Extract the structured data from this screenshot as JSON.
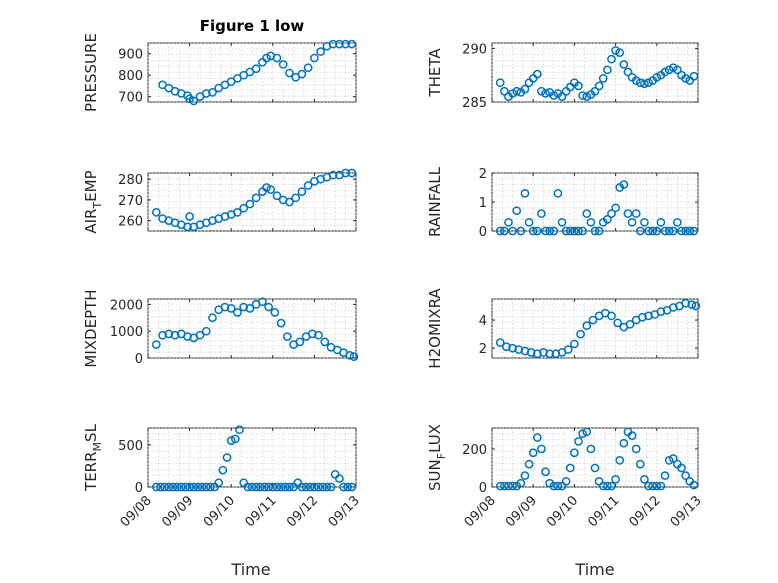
{
  "figure": {
    "title": "Figure 1 low",
    "xlabel": "Time",
    "marker_color": "#0072BD"
  },
  "chart_data": [
    {
      "type": "scatter",
      "name": "PRESSURE",
      "ylabel": "PRESSURE",
      "ylabel_sub": "",
      "ylabel_post": "",
      "xlim": [
        0,
        5
      ],
      "ylim": [
        675,
        950
      ],
      "yticks": [
        700,
        800,
        900
      ],
      "xticks": [
        0,
        1,
        2,
        3,
        4,
        5
      ],
      "xticklabels": [],
      "x": [
        0.35,
        0.5,
        0.65,
        0.8,
        0.95,
        1.0,
        1.1,
        1.25,
        1.4,
        1.55,
        1.7,
        1.85,
        2.0,
        2.15,
        2.3,
        2.45,
        2.6,
        2.75,
        2.85,
        2.95,
        3.1,
        3.25,
        3.4,
        3.55,
        3.7,
        3.85,
        4.0,
        4.15,
        4.3,
        4.45,
        4.6,
        4.75,
        4.9
      ],
      "y": [
        755,
        740,
        725,
        715,
        705,
        690,
        680,
        700,
        715,
        720,
        740,
        755,
        770,
        785,
        800,
        815,
        830,
        860,
        880,
        890,
        880,
        850,
        810,
        790,
        805,
        835,
        880,
        910,
        935,
        945,
        945,
        945,
        945
      ]
    },
    {
      "type": "scatter",
      "name": "THETA",
      "ylabel": "THETA",
      "ylabel_sub": "",
      "ylabel_post": "",
      "xlim": [
        0,
        5
      ],
      "ylim": [
        285,
        290.5
      ],
      "yticks": [
        285,
        290
      ],
      "xticks": [
        0,
        1,
        2,
        3,
        4,
        5
      ],
      "xticklabels": [],
      "x": [
        0.2,
        0.3,
        0.4,
        0.5,
        0.6,
        0.7,
        0.8,
        0.9,
        1.0,
        1.1,
        1.2,
        1.3,
        1.4,
        1.5,
        1.6,
        1.7,
        1.8,
        1.9,
        2.0,
        2.1,
        2.2,
        2.3,
        2.4,
        2.5,
        2.6,
        2.7,
        2.8,
        2.9,
        3.0,
        3.1,
        3.2,
        3.3,
        3.4,
        3.5,
        3.6,
        3.7,
        3.8,
        3.9,
        4.0,
        4.1,
        4.2,
        4.3,
        4.4,
        4.5,
        4.6,
        4.7,
        4.8,
        4.9
      ],
      "y": [
        286.8,
        286.0,
        285.5,
        285.8,
        286.0,
        285.9,
        286.2,
        286.8,
        287.2,
        287.6,
        286.0,
        285.8,
        285.9,
        285.6,
        285.8,
        285.5,
        286.0,
        286.4,
        286.8,
        286.5,
        285.6,
        285.5,
        285.7,
        286.0,
        286.5,
        287.2,
        288.0,
        289.0,
        289.8,
        289.6,
        288.5,
        287.8,
        287.3,
        287.0,
        286.8,
        286.7,
        286.8,
        287.0,
        287.3,
        287.5,
        287.8,
        288.0,
        288.2,
        288.0,
        287.5,
        287.2,
        287.0,
        287.4
      ]
    },
    {
      "type": "scatter",
      "name": "AIR_TEMP",
      "ylabel": "AIR",
      "ylabel_sub": "T",
      "ylabel_post": "EMP",
      "xlim": [
        0,
        5
      ],
      "ylim": [
        255,
        283
      ],
      "yticks": [
        260,
        270,
        280
      ],
      "xticks": [
        0,
        1,
        2,
        3,
        4,
        5
      ],
      "xticklabels": [],
      "x": [
        0.2,
        0.35,
        0.5,
        0.65,
        0.8,
        0.95,
        1.0,
        1.1,
        1.25,
        1.4,
        1.55,
        1.7,
        1.85,
        2.0,
        2.15,
        2.3,
        2.45,
        2.6,
        2.75,
        2.85,
        2.95,
        3.1,
        3.25,
        3.4,
        3.55,
        3.7,
        3.85,
        4.0,
        4.15,
        4.3,
        4.45,
        4.6,
        4.75,
        4.9
      ],
      "y": [
        264,
        261,
        260,
        259,
        258,
        257,
        262,
        257,
        258,
        259,
        260,
        261,
        262,
        263,
        264,
        266,
        268,
        271,
        274,
        276,
        275,
        272,
        270,
        269,
        271,
        274,
        277,
        279,
        280,
        281,
        282,
        282,
        283,
        283
      ]
    },
    {
      "type": "scatter",
      "name": "RAINFALL",
      "ylabel": "RAINFALL",
      "ylabel_sub": "",
      "ylabel_post": "",
      "xlim": [
        0,
        5
      ],
      "ylim": [
        0,
        2
      ],
      "yticks": [
        0,
        1,
        2
      ],
      "xticks": [
        0,
        1,
        2,
        3,
        4,
        5
      ],
      "xticklabels": [],
      "x": [
        0.2,
        0.3,
        0.4,
        0.5,
        0.6,
        0.7,
        0.8,
        0.9,
        1.0,
        1.1,
        1.2,
        1.3,
        1.4,
        1.5,
        1.6,
        1.7,
        1.8,
        1.9,
        2.0,
        2.1,
        2.2,
        2.3,
        2.4,
        2.5,
        2.6,
        2.7,
        2.8,
        2.9,
        3.0,
        3.1,
        3.2,
        3.3,
        3.4,
        3.5,
        3.6,
        3.7,
        3.8,
        3.9,
        4.0,
        4.1,
        4.2,
        4.3,
        4.4,
        4.5,
        4.6,
        4.7,
        4.8,
        4.9
      ],
      "y": [
        0,
        0,
        0.3,
        0,
        0.7,
        0,
        1.3,
        0.3,
        0,
        0,
        0.6,
        0,
        0,
        0,
        1.3,
        0.3,
        0,
        0,
        0,
        0,
        0,
        0.6,
        0.3,
        0,
        0,
        0.3,
        0.4,
        0.6,
        0.8,
        1.5,
        1.6,
        0.6,
        0.3,
        0.6,
        0,
        0.3,
        0,
        0,
        0,
        0.3,
        0,
        0,
        0,
        0.3,
        0,
        0,
        0,
        0
      ]
    },
    {
      "type": "scatter",
      "name": "MIXDEPTH",
      "ylabel": "MIXDEPTH",
      "ylabel_sub": "",
      "ylabel_post": "",
      "xlim": [
        0,
        5
      ],
      "ylim": [
        0,
        2200
      ],
      "yticks": [
        0,
        1000,
        2000
      ],
      "xticks": [
        0,
        1,
        2,
        3,
        4,
        5
      ],
      "xticklabels": [],
      "x": [
        0.2,
        0.35,
        0.5,
        0.65,
        0.8,
        0.95,
        1.1,
        1.25,
        1.4,
        1.55,
        1.7,
        1.85,
        2.0,
        2.15,
        2.3,
        2.45,
        2.6,
        2.75,
        2.9,
        3.05,
        3.2,
        3.35,
        3.5,
        3.65,
        3.8,
        3.95,
        4.1,
        4.25,
        4.4,
        4.55,
        4.7,
        4.85,
        4.95
      ],
      "y": [
        500,
        850,
        900,
        850,
        900,
        800,
        750,
        850,
        1000,
        1500,
        1800,
        1900,
        1850,
        1700,
        1900,
        1850,
        2000,
        2100,
        1900,
        1700,
        1300,
        800,
        500,
        600,
        800,
        900,
        850,
        600,
        400,
        300,
        200,
        100,
        50
      ]
    },
    {
      "type": "scatter",
      "name": "H2OMIXRA",
      "ylabel": "H2OMIXRA",
      "ylabel_sub": "",
      "ylabel_post": "",
      "xlim": [
        0,
        5
      ],
      "ylim": [
        1.3,
        5.5
      ],
      "yticks": [
        2,
        4
      ],
      "xticks": [
        0,
        1,
        2,
        3,
        4,
        5
      ],
      "xticklabels": [],
      "x": [
        0.2,
        0.35,
        0.5,
        0.65,
        0.8,
        0.95,
        1.1,
        1.25,
        1.4,
        1.55,
        1.7,
        1.85,
        2.0,
        2.15,
        2.3,
        2.45,
        2.6,
        2.75,
        2.9,
        3.05,
        3.2,
        3.35,
        3.5,
        3.65,
        3.8,
        3.95,
        4.1,
        4.25,
        4.4,
        4.55,
        4.7,
        4.85,
        4.95
      ],
      "y": [
        2.4,
        2.1,
        2.0,
        1.9,
        1.8,
        1.7,
        1.6,
        1.7,
        1.6,
        1.6,
        1.7,
        1.9,
        2.3,
        3.0,
        3.6,
        4.0,
        4.3,
        4.5,
        4.3,
        3.8,
        3.5,
        3.7,
        4.0,
        4.2,
        4.3,
        4.4,
        4.6,
        4.7,
        4.9,
        5.0,
        5.2,
        5.1,
        5.0
      ]
    },
    {
      "type": "scatter",
      "name": "TERR_MSL",
      "ylabel": "TERR",
      "ylabel_sub": "M",
      "ylabel_post": "SL",
      "xlim": [
        0,
        5
      ],
      "ylim": [
        0,
        700
      ],
      "yticks": [
        0,
        500
      ],
      "xticks": [
        0,
        1,
        2,
        3,
        4,
        5
      ],
      "xticklabels": [
        "09/08",
        "09/09",
        "09/10",
        "09/11",
        "09/12",
        "09/13"
      ],
      "x": [
        0.2,
        0.3,
        0.4,
        0.5,
        0.6,
        0.7,
        0.8,
        0.9,
        1.0,
        1.1,
        1.2,
        1.3,
        1.4,
        1.5,
        1.6,
        1.7,
        1.8,
        1.9,
        2.0,
        2.1,
        2.2,
        2.3,
        2.4,
        2.5,
        2.6,
        2.7,
        2.8,
        2.9,
        3.0,
        3.1,
        3.2,
        3.3,
        3.4,
        3.5,
        3.6,
        3.7,
        3.8,
        3.9,
        4.0,
        4.1,
        4.2,
        4.3,
        4.4,
        4.5,
        4.6,
        4.7,
        4.8,
        4.9
      ],
      "y": [
        0,
        0,
        0,
        0,
        0,
        0,
        0,
        0,
        0,
        0,
        0,
        0,
        0,
        0,
        0,
        50,
        200,
        350,
        550,
        570,
        680,
        50,
        0,
        0,
        0,
        0,
        0,
        0,
        0,
        0,
        0,
        0,
        0,
        0,
        50,
        0,
        0,
        0,
        0,
        0,
        0,
        0,
        0,
        150,
        100,
        0,
        0,
        0
      ]
    },
    {
      "type": "scatter",
      "name": "SUN_FLUX",
      "ylabel": "SUN",
      "ylabel_sub": "F",
      "ylabel_post": "LUX",
      "xlim": [
        0,
        5
      ],
      "ylim": [
        0,
        310
      ],
      "yticks": [
        0,
        200
      ],
      "xticks": [
        0,
        1,
        2,
        3,
        4,
        5
      ],
      "xticklabels": [
        "09/08",
        "09/09",
        "09/10",
        "09/11",
        "09/12",
        "09/13"
      ],
      "x": [
        0.2,
        0.3,
        0.4,
        0.5,
        0.6,
        0.7,
        0.8,
        0.9,
        1.0,
        1.1,
        1.2,
        1.3,
        1.4,
        1.5,
        1.6,
        1.7,
        1.8,
        1.9,
        2.0,
        2.1,
        2.2,
        2.3,
        2.4,
        2.5,
        2.6,
        2.7,
        2.8,
        2.9,
        3.0,
        3.1,
        3.2,
        3.3,
        3.4,
        3.5,
        3.6,
        3.7,
        3.8,
        3.9,
        4.0,
        4.1,
        4.2,
        4.3,
        4.4,
        4.5,
        4.6,
        4.7,
        4.8,
        4.9
      ],
      "y": [
        5,
        5,
        5,
        5,
        5,
        20,
        60,
        120,
        180,
        260,
        200,
        80,
        20,
        5,
        5,
        5,
        30,
        100,
        180,
        240,
        280,
        290,
        200,
        100,
        30,
        5,
        5,
        5,
        40,
        140,
        230,
        290,
        270,
        200,
        120,
        40,
        5,
        5,
        5,
        5,
        60,
        140,
        150,
        120,
        100,
        60,
        30,
        10
      ]
    }
  ]
}
